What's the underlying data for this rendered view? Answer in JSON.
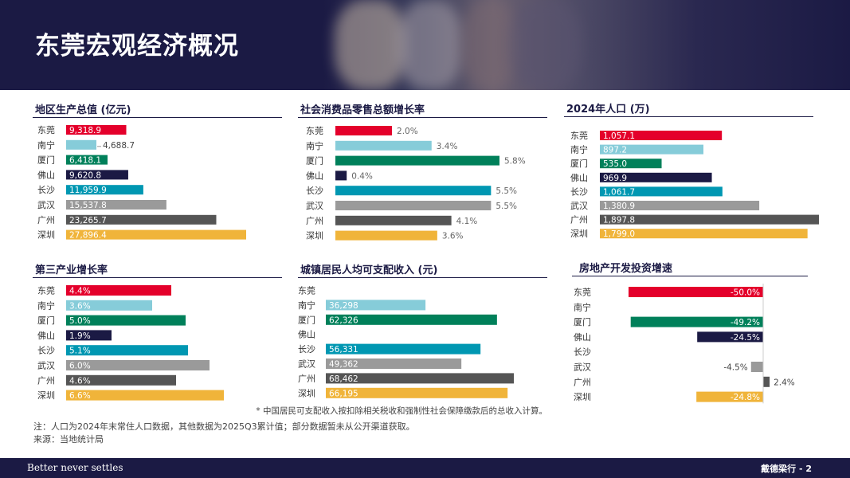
{
  "header": {
    "title": "东莞宏观经济概况"
  },
  "colors": {
    "东莞": "#e4002b",
    "南宁": "#86ccd9",
    "厦门": "#00805a",
    "佛山": "#1b1a44",
    "长沙": "#0097b2",
    "武汉": "#9a9a9a",
    "广州": "#555555",
    "深圳": "#f0b43a"
  },
  "chart_data": [
    {
      "id": "gdp",
      "type": "bar",
      "title": "地区生产总值 (亿元)",
      "categories": [
        "东莞",
        "南宁",
        "厦门",
        "佛山",
        "长沙",
        "武汉",
        "广州",
        "深圳"
      ],
      "values": [
        9318.9,
        4688.7,
        6418.1,
        9620.8,
        11959.9,
        15537.8,
        23265.7,
        27896.4
      ],
      "labels": [
        "9,318.9",
        "4,688.7",
        "6,418.1",
        "9,620.8",
        "11,959.9",
        "15,537.8",
        "23,265.7",
        "27,896.4"
      ]
    },
    {
      "id": "retail",
      "type": "bar",
      "title": "社会消费品零售总额增长率",
      "categories": [
        "东莞",
        "南宁",
        "厦门",
        "佛山",
        "长沙",
        "武汉",
        "广州",
        "深圳"
      ],
      "values": [
        2.0,
        3.4,
        5.8,
        0.4,
        5.5,
        5.5,
        4.1,
        3.6
      ],
      "labels": [
        "2.0%",
        "3.4%",
        "5.8%",
        "0.4%",
        "5.5%",
        "5.5%",
        "4.1%",
        "3.6%"
      ]
    },
    {
      "id": "population",
      "type": "bar",
      "title": "2024年人口 (万)",
      "categories": [
        "东莞",
        "南宁",
        "厦门",
        "佛山",
        "长沙",
        "武汉",
        "广州",
        "深圳"
      ],
      "values": [
        1057.1,
        897.2,
        535.0,
        969.9,
        1061.7,
        1380.9,
        1897.8,
        1799.0
      ],
      "labels": [
        "1,057.1",
        "897.2",
        "535.0",
        "969.9",
        "1,061.7",
        "1,380.9",
        "1,897.8",
        "1,799.0"
      ]
    },
    {
      "id": "tertiary",
      "type": "bar",
      "title": "第三产业增长率",
      "categories": [
        "东莞",
        "南宁",
        "厦门",
        "佛山",
        "长沙",
        "武汉",
        "广州",
        "深圳"
      ],
      "values": [
        4.4,
        3.6,
        5.0,
        1.9,
        5.1,
        6.0,
        4.6,
        6.6
      ],
      "labels": [
        "4.4%",
        "3.6%",
        "5.0%",
        "1.9%",
        "5.1%",
        "6.0%",
        "4.6%",
        "6.6%"
      ]
    },
    {
      "id": "income",
      "type": "bar",
      "title": "城镇居民人均可支配收入 (元)",
      "categories": [
        "东莞",
        "南宁",
        "厦门",
        "佛山",
        "长沙",
        "武汉",
        "广州",
        "深圳"
      ],
      "values": [
        null,
        36298,
        62326,
        null,
        56331,
        49362,
        68462,
        66195
      ],
      "labels": [
        "",
        "36,298",
        "62,326",
        "",
        "56,331",
        "49,362",
        "68,462",
        "66,195"
      ]
    },
    {
      "id": "realestate",
      "type": "bar",
      "title": "房地产开发投资增速",
      "categories": [
        "东莞",
        "南宁",
        "厦门",
        "佛山",
        "长沙",
        "武汉",
        "广州",
        "深圳"
      ],
      "values": [
        -50.0,
        null,
        -49.2,
        -24.5,
        null,
        -4.5,
        2.4,
        -24.8
      ],
      "labels": [
        "-50.0%",
        "",
        "-49.2%",
        "-24.5%",
        "",
        "-4.5%",
        "2.4%",
        "-24.8%"
      ]
    }
  ],
  "footnote": "* 中国居民可支配收入按扣除相关税收和强制性社会保障缴款后的总收入计算。",
  "notes": {
    "line1": "注：人口为2024年末常住人口数据，其他数据为2025Q3累计值；部分数据暂未从公开渠道获取。",
    "line2": "来源：当地统计局"
  },
  "footer": {
    "slogan": "Better never settles",
    "page": "戴德梁行 - 2"
  }
}
